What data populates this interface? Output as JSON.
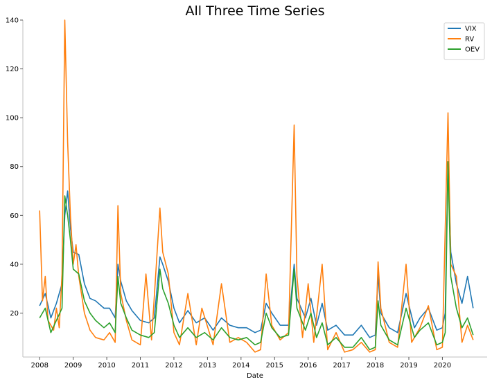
{
  "chart_data": {
    "type": "line",
    "title": "All Three Time Series",
    "xlabel": "Date",
    "ylabel": "",
    "xlim": [
      "2007-07",
      "2021-05"
    ],
    "ylim": [
      2,
      140
    ],
    "xticks": [
      "2008",
      "2009",
      "2010",
      "2011",
      "2012",
      "2013",
      "2014",
      "2015",
      "2016",
      "2017",
      "2018",
      "2019",
      "2020"
    ],
    "yticks": [
      20,
      40,
      60,
      80,
      100,
      120,
      140
    ],
    "grid": false,
    "legend_position": "top-right",
    "series": [
      {
        "name": "VIX",
        "color": "#1f77b4",
        "points": [
          [
            "2008-01",
            23
          ],
          [
            "2008-03",
            28
          ],
          [
            "2008-05",
            18
          ],
          [
            "2008-07",
            24
          ],
          [
            "2008-09",
            32
          ],
          [
            "2008-10",
            60
          ],
          [
            "2008-11",
            70
          ],
          [
            "2008-12",
            55
          ],
          [
            "2009-01",
            45
          ],
          [
            "2009-03",
            44
          ],
          [
            "2009-05",
            32
          ],
          [
            "2009-07",
            26
          ],
          [
            "2009-09",
            25
          ],
          [
            "2009-12",
            22
          ],
          [
            "2010-02",
            22
          ],
          [
            "2010-04",
            18
          ],
          [
            "2010-05",
            40
          ],
          [
            "2010-06",
            33
          ],
          [
            "2010-08",
            25
          ],
          [
            "2010-10",
            21
          ],
          [
            "2011-01",
            17
          ],
          [
            "2011-04",
            16
          ],
          [
            "2011-06",
            18
          ],
          [
            "2011-08",
            43
          ],
          [
            "2011-09",
            40
          ],
          [
            "2011-11",
            33
          ],
          [
            "2012-01",
            22
          ],
          [
            "2012-03",
            16
          ],
          [
            "2012-06",
            21
          ],
          [
            "2012-09",
            16
          ],
          [
            "2012-12",
            18
          ],
          [
            "2013-03",
            13
          ],
          [
            "2013-06",
            18
          ],
          [
            "2013-09",
            15
          ],
          [
            "2013-12",
            14
          ],
          [
            "2014-03",
            14
          ],
          [
            "2014-06",
            12
          ],
          [
            "2014-08",
            13
          ],
          [
            "2014-10",
            24
          ],
          [
            "2014-12",
            20
          ],
          [
            "2015-03",
            15
          ],
          [
            "2015-06",
            15
          ],
          [
            "2015-08",
            40
          ],
          [
            "2015-09",
            26
          ],
          [
            "2015-12",
            18
          ],
          [
            "2016-02",
            26
          ],
          [
            "2016-04",
            15
          ],
          [
            "2016-06",
            24
          ],
          [
            "2016-08",
            13
          ],
          [
            "2016-11",
            15
          ],
          [
            "2017-02",
            11
          ],
          [
            "2017-05",
            11
          ],
          [
            "2017-08",
            15
          ],
          [
            "2017-11",
            10
          ],
          [
            "2018-01",
            11
          ],
          [
            "2018-02",
            36
          ],
          [
            "2018-03",
            20
          ],
          [
            "2018-06",
            14
          ],
          [
            "2018-09",
            12
          ],
          [
            "2018-12",
            28
          ],
          [
            "2019-03",
            14
          ],
          [
            "2019-05",
            18
          ],
          [
            "2019-08",
            22
          ],
          [
            "2019-11",
            13
          ],
          [
            "2020-01",
            14
          ],
          [
            "2020-02",
            20
          ],
          [
            "2020-03",
            82
          ],
          [
            "2020-04",
            45
          ],
          [
            "2020-06",
            32
          ],
          [
            "2020-08",
            24
          ],
          [
            "2020-10",
            35
          ],
          [
            "2020-12",
            22
          ]
        ]
      },
      {
        "name": "RV",
        "color": "#ff7f0e",
        "points": [
          [
            "2008-01",
            62
          ],
          [
            "2008-02",
            25
          ],
          [
            "2008-03",
            35
          ],
          [
            "2008-04",
            17
          ],
          [
            "2008-06",
            13
          ],
          [
            "2008-07",
            22
          ],
          [
            "2008-08",
            14
          ],
          [
            "2008-09",
            36
          ],
          [
            "2008-10",
            140
          ],
          [
            "2008-11",
            90
          ],
          [
            "2008-12",
            60
          ],
          [
            "2009-01",
            40
          ],
          [
            "2009-02",
            48
          ],
          [
            "2009-03",
            35
          ],
          [
            "2009-05",
            20
          ],
          [
            "2009-07",
            13
          ],
          [
            "2009-09",
            10
          ],
          [
            "2009-12",
            9
          ],
          [
            "2010-02",
            12
          ],
          [
            "2010-04",
            8
          ],
          [
            "2010-05",
            64
          ],
          [
            "2010-06",
            28
          ],
          [
            "2010-08",
            17
          ],
          [
            "2010-10",
            9
          ],
          [
            "2011-01",
            7
          ],
          [
            "2011-03",
            36
          ],
          [
            "2011-05",
            9
          ],
          [
            "2011-08",
            63
          ],
          [
            "2011-09",
            45
          ],
          [
            "2011-11",
            36
          ],
          [
            "2012-01",
            12
          ],
          [
            "2012-03",
            7
          ],
          [
            "2012-06",
            28
          ],
          [
            "2012-09",
            7
          ],
          [
            "2012-11",
            22
          ],
          [
            "2013-03",
            7
          ],
          [
            "2013-06",
            32
          ],
          [
            "2013-09",
            8
          ],
          [
            "2013-12",
            10
          ],
          [
            "2014-03",
            8
          ],
          [
            "2014-06",
            4
          ],
          [
            "2014-08",
            5
          ],
          [
            "2014-10",
            36
          ],
          [
            "2014-12",
            15
          ],
          [
            "2015-03",
            9
          ],
          [
            "2015-06",
            12
          ],
          [
            "2015-08",
            97
          ],
          [
            "2015-09",
            35
          ],
          [
            "2015-11",
            10
          ],
          [
            "2016-01",
            32
          ],
          [
            "2016-03",
            8
          ],
          [
            "2016-06",
            40
          ],
          [
            "2016-08",
            5
          ],
          [
            "2016-11",
            12
          ],
          [
            "2017-02",
            4
          ],
          [
            "2017-05",
            5
          ],
          [
            "2017-08",
            8
          ],
          [
            "2017-11",
            4
          ],
          [
            "2018-01",
            5
          ],
          [
            "2018-02",
            41
          ],
          [
            "2018-03",
            22
          ],
          [
            "2018-06",
            8
          ],
          [
            "2018-09",
            6
          ],
          [
            "2018-12",
            40
          ],
          [
            "2019-02",
            8
          ],
          [
            "2019-05",
            14
          ],
          [
            "2019-08",
            23
          ],
          [
            "2019-11",
            5
          ],
          [
            "2020-01",
            6
          ],
          [
            "2020-03",
            102
          ],
          [
            "2020-04",
            40
          ],
          [
            "2020-06",
            35
          ],
          [
            "2020-08",
            8
          ],
          [
            "2020-10",
            15
          ],
          [
            "2020-12",
            9
          ]
        ]
      },
      {
        "name": "OEV",
        "color": "#2ca02c",
        "points": [
          [
            "2008-01",
            18
          ],
          [
            "2008-03",
            22
          ],
          [
            "2008-05",
            12
          ],
          [
            "2008-07",
            17
          ],
          [
            "2008-09",
            22
          ],
          [
            "2008-10",
            68
          ],
          [
            "2008-11",
            60
          ],
          [
            "2008-12",
            50
          ],
          [
            "2009-01",
            38
          ],
          [
            "2009-03",
            36
          ],
          [
            "2009-05",
            25
          ],
          [
            "2009-07",
            20
          ],
          [
            "2009-09",
            17
          ],
          [
            "2009-12",
            14
          ],
          [
            "2010-02",
            16
          ],
          [
            "2010-04",
            12
          ],
          [
            "2010-05",
            35
          ],
          [
            "2010-06",
            24
          ],
          [
            "2010-08",
            18
          ],
          [
            "2010-10",
            13
          ],
          [
            "2011-01",
            11
          ],
          [
            "2011-04",
            10
          ],
          [
            "2011-06",
            12
          ],
          [
            "2011-08",
            38
          ],
          [
            "2011-09",
            30
          ],
          [
            "2011-11",
            24
          ],
          [
            "2012-01",
            15
          ],
          [
            "2012-03",
            10
          ],
          [
            "2012-06",
            14
          ],
          [
            "2012-09",
            10
          ],
          [
            "2012-12",
            12
          ],
          [
            "2013-03",
            9
          ],
          [
            "2013-06",
            14
          ],
          [
            "2013-09",
            10
          ],
          [
            "2013-12",
            9
          ],
          [
            "2014-03",
            10
          ],
          [
            "2014-06",
            7
          ],
          [
            "2014-08",
            8
          ],
          [
            "2014-10",
            20
          ],
          [
            "2014-12",
            14
          ],
          [
            "2015-03",
            10
          ],
          [
            "2015-06",
            11
          ],
          [
            "2015-08",
            38
          ],
          [
            "2015-09",
            22
          ],
          [
            "2015-12",
            13
          ],
          [
            "2016-02",
            20
          ],
          [
            "2016-04",
            10
          ],
          [
            "2016-06",
            16
          ],
          [
            "2016-08",
            7
          ],
          [
            "2016-11",
            10
          ],
          [
            "2017-02",
            6
          ],
          [
            "2017-05",
            6
          ],
          [
            "2017-08",
            10
          ],
          [
            "2017-11",
            5
          ],
          [
            "2018-01",
            6
          ],
          [
            "2018-02",
            25
          ],
          [
            "2018-03",
            15
          ],
          [
            "2018-06",
            9
          ],
          [
            "2018-09",
            7
          ],
          [
            "2018-12",
            22
          ],
          [
            "2019-03",
            10
          ],
          [
            "2019-05",
            13
          ],
          [
            "2019-08",
            16
          ],
          [
            "2019-11",
            7
          ],
          [
            "2020-01",
            8
          ],
          [
            "2020-02",
            12
          ],
          [
            "2020-03",
            82
          ],
          [
            "2020-04",
            35
          ],
          [
            "2020-06",
            22
          ],
          [
            "2020-08",
            14
          ],
          [
            "2020-10",
            18
          ],
          [
            "2020-12",
            11
          ]
        ]
      }
    ]
  }
}
